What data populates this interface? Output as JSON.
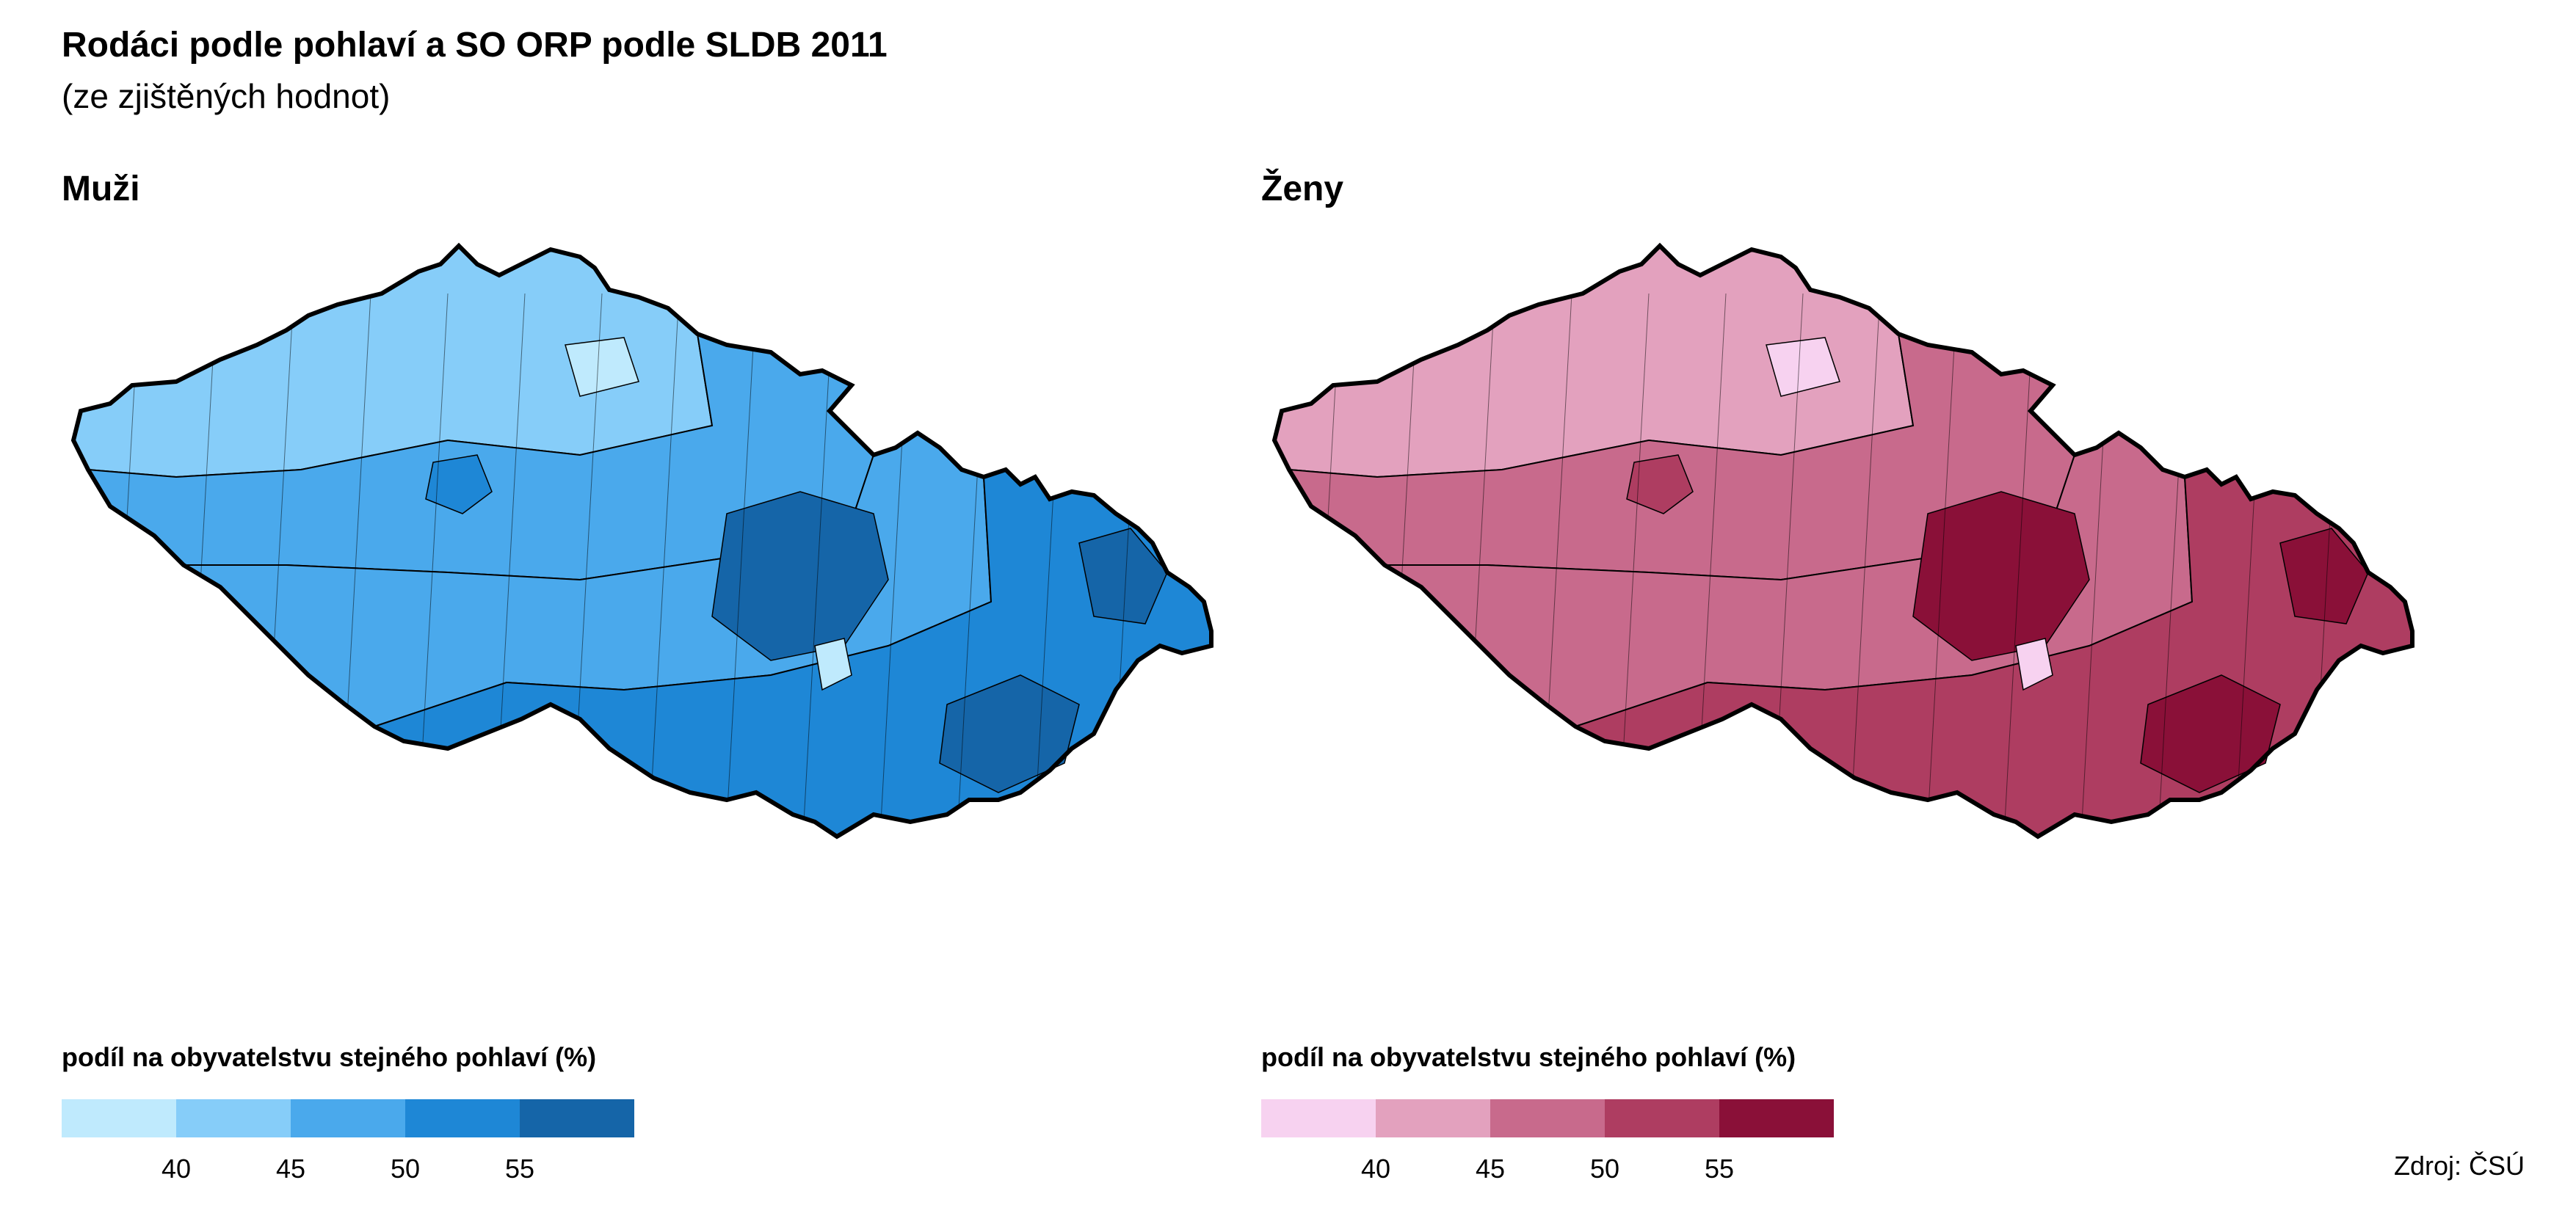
{
  "title": "Rodáci podle pohlaví a SO ORP podle SLDB 2011",
  "subtitle": "(ze zjištěných hodnot)",
  "source": "Zdroj: ČSÚ",
  "panels": [
    {
      "title": "Muži",
      "legend_title": "podíl na obyvatelstvu stejného pohlaví (%)",
      "colors": [
        "#bfeafd",
        "#86cdf9",
        "#4aa9ec",
        "#1e87d6",
        "#1565a8"
      ],
      "ticks": [
        "40",
        "45",
        "50",
        "55"
      ]
    },
    {
      "title": "Ženy",
      "legend_title": "podíl na obyvatelstvu stejného pohlaví (%)",
      "colors": [
        "#f7d2f0",
        "#e3a1be",
        "#c86a8c",
        "#ae3d61",
        "#8a1038"
      ],
      "ticks": [
        "40",
        "45",
        "50",
        "55"
      ]
    }
  ]
}
